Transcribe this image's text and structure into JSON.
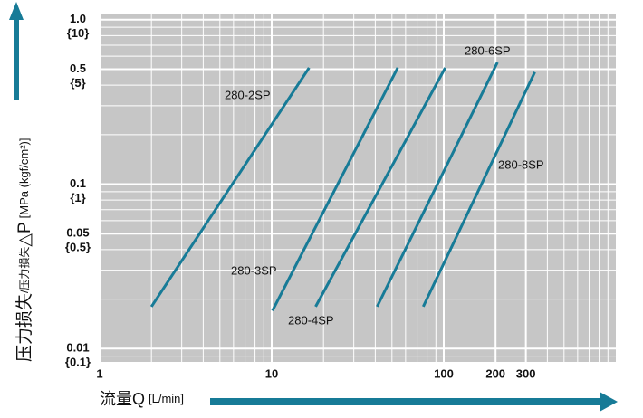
{
  "chart_data": {
    "type": "line",
    "y_label": {
      "main": "压力损失",
      "small": "/压力損失",
      "symbol": "△P",
      "unit": "[MPa (kgf/cm²)]"
    },
    "x_label": {
      "main": "流量Q",
      "unit": "[L/min]"
    },
    "xscale": "log",
    "yscale": "log",
    "grid": "minor",
    "xlim": [
      1,
      1000
    ],
    "ylim": [
      0.0083,
      1.09
    ],
    "xticks": [
      1,
      10,
      100,
      200,
      300
    ],
    "yticks": [
      {
        "value": 1,
        "label": "1.0",
        "label2": "{10}"
      },
      {
        "value": 0.5,
        "label": "0.5",
        "label2": "{5}"
      },
      {
        "value": 0.1,
        "label": "0.1",
        "label2": "{1}"
      },
      {
        "value": 0.05,
        "label": "0.05",
        "label2": "{0.5}"
      },
      {
        "value": 0.01,
        "label": "0.01",
        "label2": "{0.1}"
      }
    ],
    "series": [
      {
        "name": "280-2SP",
        "color": "#177b97",
        "x": [
          2,
          16.5
        ],
        "values": [
          0.018,
          0.51
        ]
      },
      {
        "name": "280-3SP",
        "color": "#177b97",
        "x": [
          10.1,
          54
        ],
        "values": [
          0.017,
          0.51
        ]
      },
      {
        "name": "280-4SP",
        "color": "#177b97",
        "x": [
          18,
          102
        ],
        "values": [
          0.018,
          0.51
        ]
      },
      {
        "name": "280-6SP",
        "color": "#177b97",
        "x": [
          41,
          205
        ],
        "values": [
          0.018,
          0.55
        ]
      },
      {
        "name": "280-8SP",
        "color": "#177b97",
        "x": [
          76,
          338
        ],
        "values": [
          0.018,
          0.48
        ]
      }
    ]
  }
}
